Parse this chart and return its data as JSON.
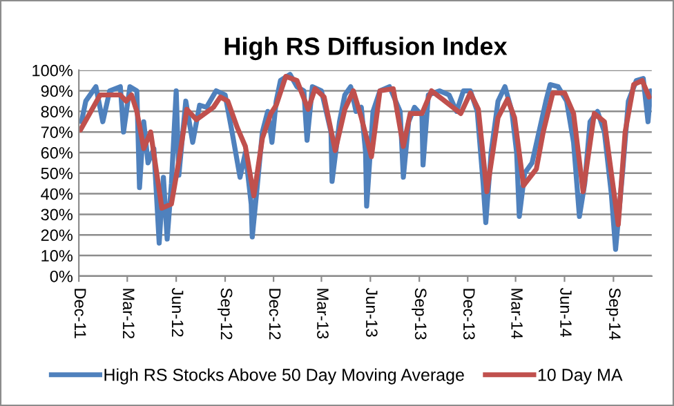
{
  "chart_data": {
    "type": "line",
    "title": "High RS Diffusion Index",
    "xlim": [
      "2011-12-01",
      "2014-11-12"
    ],
    "xticks": [
      {
        "value": "2011-12-01",
        "label": "Dec-11"
      },
      {
        "value": "2012-03-01",
        "label": "Mar-12"
      },
      {
        "value": "2012-06-01",
        "label": "Jun-12"
      },
      {
        "value": "2012-09-01",
        "label": "Sep-12"
      },
      {
        "value": "2012-12-01",
        "label": "Dec-12"
      },
      {
        "value": "2013-03-01",
        "label": "Mar-13"
      },
      {
        "value": "2013-06-01",
        "label": "Jun-13"
      },
      {
        "value": "2013-09-01",
        "label": "Sep-13"
      },
      {
        "value": "2013-12-01",
        "label": "Dec-13"
      },
      {
        "value": "2014-03-01",
        "label": "Mar-14"
      },
      {
        "value": "2014-06-01",
        "label": "Jun-14"
      },
      {
        "value": "2014-09-01",
        "label": "Sep-14"
      }
    ],
    "ylim": [
      0,
      100
    ],
    "yticks": [
      {
        "value": 0,
        "label": "0%"
      },
      {
        "value": 10,
        "label": "10%"
      },
      {
        "value": 20,
        "label": "20%"
      },
      {
        "value": 30,
        "label": "30%"
      },
      {
        "value": 40,
        "label": "40%"
      },
      {
        "value": 50,
        "label": "50%"
      },
      {
        "value": 60,
        "label": "60%"
      },
      {
        "value": 70,
        "label": "70%"
      },
      {
        "value": 80,
        "label": "80%"
      },
      {
        "value": 90,
        "label": "90%"
      },
      {
        "value": 100,
        "label": "100%"
      }
    ],
    "grid": "y",
    "legend": "bottom",
    "marker": "none",
    "line_style": "solid",
    "series": [
      {
        "name": "High RS Stocks Above 50 Day Moving Average",
        "color": "#4f81bd",
        "x": [
          "2011-12-06",
          "2011-12-14",
          "2012-01-02",
          "2012-01-15",
          "2012-01-28",
          "2012-02-17",
          "2012-02-23",
          "2012-03-06",
          "2012-03-19",
          "2012-03-24",
          "2012-04-01",
          "2012-04-09",
          "2012-04-20",
          "2012-04-30",
          "2012-05-08",
          "2012-05-15",
          "2012-05-23",
          "2012-06-01",
          "2012-06-06",
          "2012-06-19",
          "2012-07-02",
          "2012-07-15",
          "2012-07-28",
          "2012-08-15",
          "2012-09-01",
          "2012-09-14",
          "2012-09-29",
          "2012-10-09",
          "2012-10-20",
          "2012-10-22",
          "2012-10-30",
          "2012-11-10",
          "2012-11-20",
          "2012-11-28",
          "2012-12-06",
          "2012-12-14",
          "2013-01-01",
          "2013-01-14",
          "2013-01-27",
          "2013-02-02",
          "2013-02-12",
          "2013-03-01",
          "2013-03-19",
          "2013-03-21",
          "2013-04-04",
          "2013-04-14",
          "2013-04-25",
          "2013-05-05",
          "2013-05-15",
          "2013-05-23",
          "2013-05-25",
          "2013-06-06",
          "2013-06-19",
          "2013-07-07",
          "2013-07-27",
          "2013-08-02",
          "2013-08-12",
          "2013-08-23",
          "2013-09-06",
          "2013-09-08",
          "2013-09-18",
          "2013-10-09",
          "2013-10-27",
          "2013-11-10",
          "2013-11-23",
          "2013-12-06",
          "2013-12-19",
          "2013-12-30",
          "2014-01-04",
          "2014-01-14",
          "2014-01-27",
          "2014-02-09",
          "2014-02-22",
          "2014-03-03",
          "2014-03-08",
          "2014-03-18",
          "2014-04-01",
          "2014-04-14",
          "2014-04-27",
          "2014-05-05",
          "2014-05-20",
          "2014-06-05",
          "2014-06-18",
          "2014-06-29",
          "2014-07-09",
          "2014-07-19",
          "2014-08-02",
          "2014-08-15",
          "2014-08-28",
          "2014-09-05",
          "2014-09-18",
          "2014-09-29",
          "2014-10-14",
          "2014-10-27",
          "2014-11-05",
          "2014-11-10"
        ],
        "values": [
          75,
          85,
          92,
          75,
          90,
          92,
          70,
          92,
          90,
          43,
          75,
          55,
          62,
          16,
          48,
          18,
          45,
          90,
          49,
          85,
          65,
          83,
          82,
          90,
          88,
          70,
          48,
          60,
          35,
          19,
          40,
          70,
          80,
          65,
          85,
          95,
          98,
          92,
          90,
          66,
          92,
          90,
          70,
          46,
          75,
          88,
          92,
          80,
          82,
          60,
          34,
          80,
          90,
          92,
          80,
          48,
          75,
          82,
          78,
          54,
          88,
          90,
          88,
          80,
          90,
          90,
          80,
          45,
          26,
          60,
          85,
          92,
          80,
          60,
          29,
          50,
          55,
          70,
          85,
          93,
          92,
          85,
          65,
          29,
          45,
          75,
          80,
          70,
          40,
          13,
          50,
          85,
          95,
          96,
          75,
          90
        ]
      },
      {
        "name": "10 Day MA",
        "color": "#c0504d",
        "x": [
          "2011-12-04",
          "2012-01-10",
          "2012-02-17",
          "2012-02-28",
          "2012-03-09",
          "2012-03-19",
          "2012-04-01",
          "2012-04-14",
          "2012-05-05",
          "2012-05-23",
          "2012-06-06",
          "2012-06-21",
          "2012-07-09",
          "2012-08-10",
          "2012-08-23",
          "2012-09-06",
          "2012-09-24",
          "2012-10-09",
          "2012-10-25",
          "2012-11-10",
          "2012-11-26",
          "2012-12-06",
          "2012-12-24",
          "2013-01-14",
          "2013-02-04",
          "2013-02-17",
          "2013-03-06",
          "2013-03-27",
          "2013-04-14",
          "2013-04-30",
          "2013-05-15",
          "2013-06-03",
          "2013-06-19",
          "2013-07-14",
          "2013-08-02",
          "2013-08-15",
          "2013-09-06",
          "2013-09-24",
          "2013-10-14",
          "2013-11-18",
          "2013-12-06",
          "2013-12-21",
          "2014-01-06",
          "2014-01-27",
          "2014-02-14",
          "2014-02-27",
          "2014-03-16",
          "2014-04-09",
          "2014-04-22",
          "2014-05-10",
          "2014-06-01",
          "2014-06-18",
          "2014-07-06",
          "2014-07-27",
          "2014-08-15",
          "2014-09-10",
          "2014-09-23",
          "2014-10-09",
          "2014-10-25",
          "2014-11-07"
        ],
        "values": [
          71,
          88,
          88,
          85,
          88,
          80,
          62,
          70,
          33,
          35,
          56,
          81,
          76,
          82,
          87,
          85,
          72,
          63,
          39,
          67,
          79,
          83,
          97,
          95,
          81,
          91,
          87,
          61,
          81,
          90,
          77,
          58,
          90,
          91,
          63,
          79,
          79,
          90,
          86,
          79,
          89,
          81,
          41,
          77,
          86,
          77,
          44,
          52,
          70,
          89,
          89,
          79,
          41,
          79,
          75,
          25,
          70,
          93,
          95,
          87
        ]
      }
    ]
  }
}
